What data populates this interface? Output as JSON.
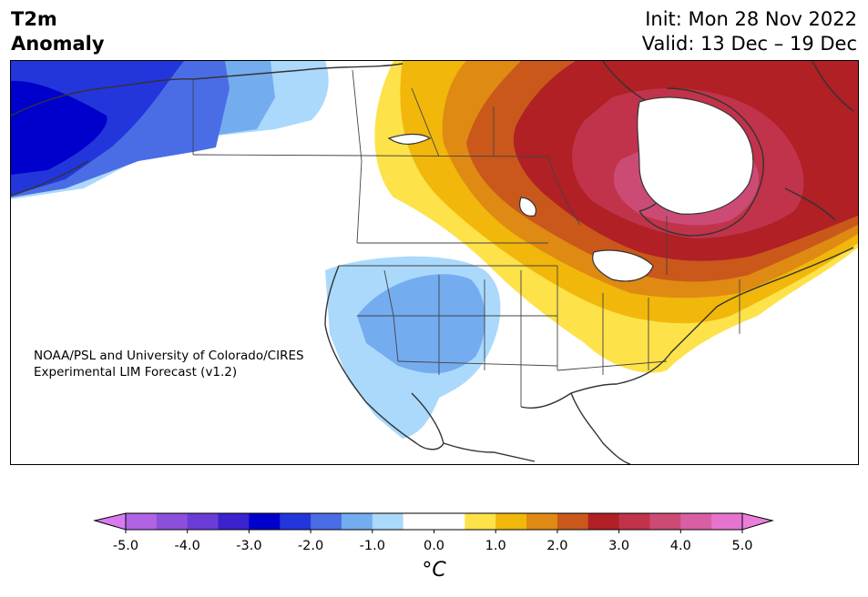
{
  "header": {
    "variable": "T2m",
    "type": "Anomaly",
    "init": "Init: Mon 28 Nov 2022",
    "valid": "Valid: 13 Dec – 19 Dec"
  },
  "credit": {
    "line1": "NOAA/PSL and University of Colorado/CIRES",
    "line2": "Experimental LIM Forecast (v1.2)"
  },
  "colorbar": {
    "unit_label": "°C",
    "ticks": [
      "-5.0",
      "-4.0",
      "-3.0",
      "-2.0",
      "-1.0",
      "0.0",
      "1.0",
      "2.0",
      "3.0",
      "4.0",
      "5.0"
    ],
    "under_color": "#d97bef",
    "over_color": "#e97fd8",
    "bins": [
      {
        "from": -5.0,
        "to": -4.5,
        "color": "#b064e3"
      },
      {
        "from": -4.5,
        "to": -4.0,
        "color": "#8c4fdb"
      },
      {
        "from": -4.0,
        "to": -3.5,
        "color": "#6a3cd6"
      },
      {
        "from": -3.5,
        "to": -3.0,
        "color": "#3a22cf"
      },
      {
        "from": -3.0,
        "to": -2.5,
        "color": "#0000cc"
      },
      {
        "from": -2.5,
        "to": -2.0,
        "color": "#2336dc"
      },
      {
        "from": -2.0,
        "to": -1.5,
        "color": "#4a6de6"
      },
      {
        "from": -1.5,
        "to": -1.0,
        "color": "#74acf0"
      },
      {
        "from": -1.0,
        "to": -0.5,
        "color": "#aad9fb"
      },
      {
        "from": -0.5,
        "to": 0.5,
        "color": "#ffffff"
      },
      {
        "from": 0.5,
        "to": 1.0,
        "color": "#fde24a"
      },
      {
        "from": 1.0,
        "to": 1.5,
        "color": "#f1b70a"
      },
      {
        "from": 1.5,
        "to": 2.0,
        "color": "#df8a13"
      },
      {
        "from": 2.0,
        "to": 2.5,
        "color": "#c9581a"
      },
      {
        "from": 2.5,
        "to": 3.0,
        "color": "#b02024"
      },
      {
        "from": 3.0,
        "to": 3.5,
        "color": "#c0334a"
      },
      {
        "from": 3.5,
        "to": 4.0,
        "color": "#cc4b75"
      },
      {
        "from": 4.0,
        "to": 4.5,
        "color": "#d95fa3"
      },
      {
        "from": 4.5,
        "to": 5.0,
        "color": "#e674cf"
      }
    ]
  }
}
